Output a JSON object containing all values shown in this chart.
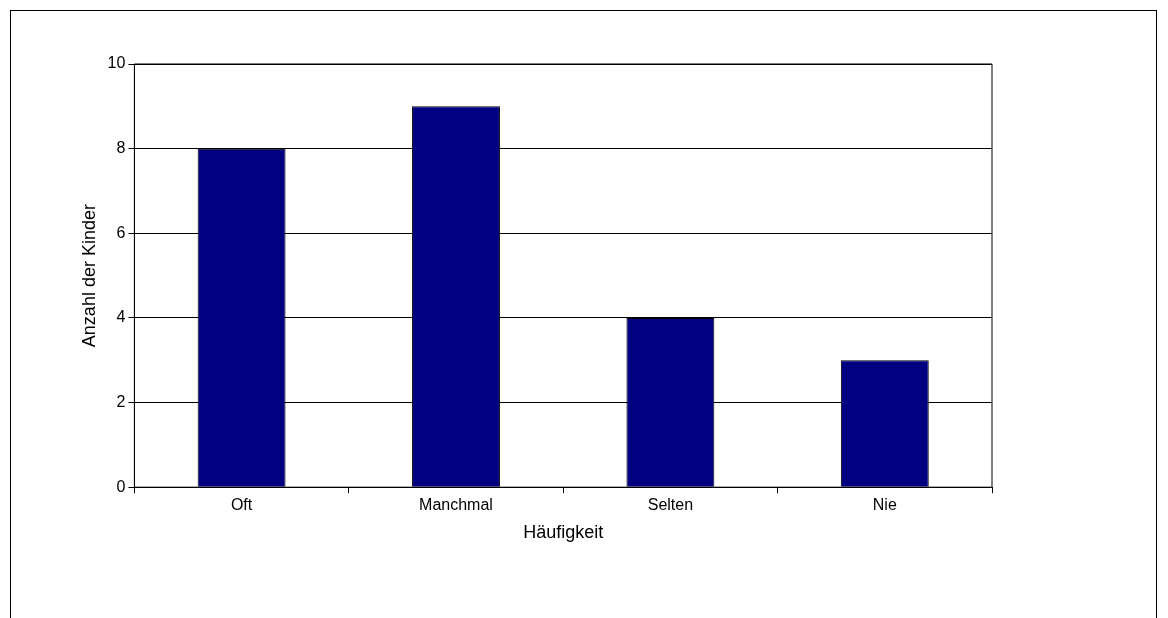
{
  "chart_data": {
    "type": "bar",
    "xlabel": "Häufigkeit",
    "ylabel": "Anzahl der Kinder",
    "categories": [
      "Oft",
      "Manchmal",
      "Selten",
      "Nie"
    ],
    "values": [
      8,
      9,
      4,
      3
    ],
    "color": "#000080",
    "ylim": [
      0,
      10
    ],
    "yticks": [
      0,
      2,
      4,
      6,
      8,
      10
    ],
    "grid": "y",
    "legend": false
  }
}
